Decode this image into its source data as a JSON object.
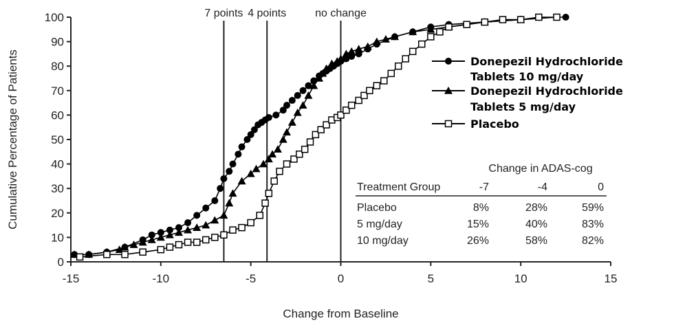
{
  "chart_data": {
    "type": "line",
    "title": "",
    "xlabel": "Change from Baseline",
    "ylabel": "Cumulative Percentage of Patients",
    "xlim": [
      -15,
      15
    ],
    "ylim": [
      0,
      100
    ],
    "xticks": [
      "-15",
      "-10",
      "-5",
      "0",
      "5",
      "10",
      "15"
    ],
    "yticks": [
      "0",
      "10",
      "20",
      "30",
      "40",
      "50",
      "60",
      "70",
      "80",
      "90",
      "100"
    ],
    "reference_lines": [
      {
        "x": -6.5,
        "label": "7 points"
      },
      {
        "x": -4.1,
        "label": "4 points"
      },
      {
        "x": 0,
        "label": "no change"
      }
    ],
    "legend_position": "right",
    "series": [
      {
        "name": "Donepezil Hydrochloride Tablets 10 mg/day",
        "marker": "filled-circle",
        "color": "#000000",
        "x": [
          -14.8,
          -14,
          -13,
          -12,
          -11,
          -10.5,
          -10,
          -9.5,
          -9,
          -8.5,
          -8,
          -7.5,
          -7,
          -6.7,
          -6.5,
          -6.2,
          -6,
          -5.7,
          -5.5,
          -5.2,
          -5,
          -4.8,
          -4.6,
          -4.4,
          -4.2,
          -4,
          -3.6,
          -3.2,
          -3,
          -2.7,
          -2.4,
          -2.1,
          -1.8,
          -1.5,
          -1.2,
          -1,
          -0.8,
          -0.6,
          -0.4,
          -0.2,
          0,
          0.3,
          0.6,
          1,
          1.5,
          2,
          3,
          4,
          5,
          6,
          8,
          10,
          12,
          12.5
        ],
        "y": [
          3,
          3,
          4,
          6,
          9,
          11,
          12,
          13,
          14,
          16,
          19,
          22,
          25,
          30,
          34,
          37,
          40,
          44,
          47,
          50,
          52,
          54,
          56,
          57,
          58,
          59,
          60,
          62,
          64,
          66,
          68,
          70,
          72,
          74,
          76,
          77,
          78,
          79,
          80,
          81,
          82,
          83,
          84,
          85,
          87,
          89,
          92,
          94,
          96,
          97,
          98,
          99,
          100,
          100
        ]
      },
      {
        "name": "Donepezil Hydrochloride Tablets 5 mg/day",
        "marker": "filled-triangle",
        "color": "#000000",
        "x": [
          -14.8,
          -14,
          -13,
          -12.3,
          -12,
          -11.5,
          -11,
          -10.5,
          -10,
          -9.5,
          -9,
          -8.5,
          -8,
          -7.5,
          -7,
          -6.5,
          -6.2,
          -6,
          -5.5,
          -5,
          -4.7,
          -4.3,
          -4,
          -3.8,
          -3.5,
          -3.2,
          -3,
          -2.7,
          -2.4,
          -2.1,
          -1.8,
          -1.5,
          -1.2,
          -1,
          -0.8,
          -0.5,
          -0.2,
          0,
          0.3,
          0.6,
          1,
          1.5,
          2,
          2.5,
          3,
          4,
          5,
          6,
          8,
          10
        ],
        "y": [
          3,
          3,
          4,
          5,
          6,
          7,
          8,
          9,
          10,
          11,
          12,
          13,
          14,
          15,
          17,
          19,
          24,
          28,
          33,
          36,
          38,
          40,
          42,
          44,
          46,
          50,
          53,
          57,
          61,
          64,
          68,
          72,
          75,
          77,
          79,
          81,
          82,
          83,
          85,
          86,
          87,
          88,
          90,
          91,
          92,
          94,
          95,
          96,
          98,
          99
        ]
      },
      {
        "name": "Placebo",
        "marker": "open-square",
        "color": "#000000",
        "x": [
          -14.5,
          -13,
          -12,
          -11,
          -10,
          -9.5,
          -9,
          -8.5,
          -8,
          -7.5,
          -7,
          -6.5,
          -6,
          -5.5,
          -5,
          -4.5,
          -4.2,
          -4,
          -3.7,
          -3.4,
          -3,
          -2.6,
          -2.3,
          -2,
          -1.7,
          -1.4,
          -1.1,
          -0.8,
          -0.5,
          -0.2,
          0,
          0.3,
          0.6,
          1,
          1.3,
          1.6,
          2,
          2.4,
          2.8,
          3.2,
          3.6,
          4,
          4.5,
          5,
          5.5,
          6,
          7,
          8,
          9,
          10,
          11,
          12
        ],
        "y": [
          2,
          3,
          3,
          4,
          5,
          6,
          7,
          8,
          8,
          9,
          10,
          11,
          13,
          14,
          16,
          19,
          24,
          28,
          33,
          37,
          40,
          42,
          44,
          46,
          49,
          52,
          54,
          56,
          58,
          59,
          60,
          62,
          64,
          66,
          68,
          70,
          72,
          74,
          77,
          80,
          83,
          86,
          89,
          92,
          94,
          96,
          97,
          98,
          99,
          99,
          100,
          100
        ]
      }
    ],
    "table": {
      "title": "Change in ADAS-cog",
      "columns": [
        "Treatment Group",
        "-7",
        "-4",
        "0"
      ],
      "rows": [
        [
          "Placebo",
          "8%",
          "28%",
          "59%"
        ],
        [
          "5 mg/day",
          "15%",
          "40%",
          "83%"
        ],
        [
          "10 mg/day",
          "26%",
          "58%",
          "82%"
        ]
      ]
    }
  }
}
